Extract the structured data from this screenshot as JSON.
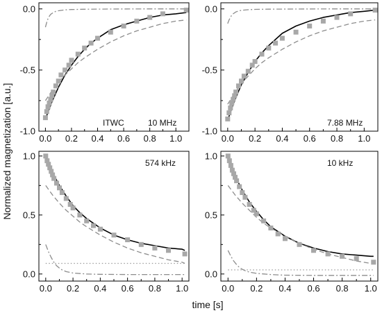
{
  "figure": {
    "ylabel": "Normalized magnetization [a.u.]",
    "xlabel": "time [s]"
  },
  "style": {
    "marker_color": "#a8a8a8",
    "fit_color": "#000000",
    "component_color": "#8c8c8c",
    "offset_color": "#9a9a9a"
  },
  "chart_data": [
    {
      "type": "scatter",
      "annotations": [
        "ITWC",
        "10 MHz"
      ],
      "xlim": [
        -0.05,
        1.1
      ],
      "ylim": [
        -1.0,
        0.05
      ],
      "xticks": [
        "0.0",
        "0.2",
        "0.4",
        "0.6",
        "0.8",
        "1.0"
      ],
      "yticks": [
        "-1.0",
        "-0.5",
        "0.0"
      ],
      "series": [
        {
          "role": "data",
          "marker": "square",
          "x": [
            0.0,
            0.01,
            0.02,
            0.03,
            0.04,
            0.05,
            0.06,
            0.08,
            0.1,
            0.12,
            0.15,
            0.18,
            0.2,
            0.25,
            0.3,
            0.35,
            0.4,
            0.5,
            0.6,
            0.7,
            0.8,
            0.9,
            1.08
          ],
          "y": [
            -0.89,
            -0.84,
            -0.8,
            -0.77,
            -0.74,
            -0.71,
            -0.68,
            -0.63,
            -0.59,
            -0.54,
            -0.5,
            -0.46,
            -0.42,
            -0.37,
            -0.32,
            -0.28,
            -0.24,
            -0.19,
            -0.14,
            -0.1,
            -0.07,
            -0.04,
            -0.01
          ]
        },
        {
          "role": "fit",
          "line": "solid",
          "x": [
            0.0,
            0.05,
            0.1,
            0.15,
            0.2,
            0.25,
            0.3,
            0.35,
            0.4,
            0.5,
            0.6,
            0.7,
            0.8,
            0.9,
            1.0,
            1.08
          ],
          "y": [
            -0.9,
            -0.76,
            -0.64,
            -0.54,
            -0.46,
            -0.39,
            -0.33,
            -0.28,
            -0.24,
            -0.17,
            -0.13,
            -0.1,
            -0.07,
            -0.05,
            -0.04,
            -0.03
          ]
        },
        {
          "role": "component",
          "line": "dashed",
          "x": [
            0.0,
            0.05,
            0.1,
            0.15,
            0.2,
            0.25,
            0.3,
            0.4,
            0.5,
            0.6,
            0.7,
            0.8,
            0.9,
            1.0,
            1.08
          ],
          "y": [
            -0.75,
            -0.67,
            -0.6,
            -0.54,
            -0.49,
            -0.44,
            -0.4,
            -0.33,
            -0.27,
            -0.22,
            -0.18,
            -0.15,
            -0.12,
            -0.1,
            -0.09
          ]
        },
        {
          "role": "component",
          "line": "dashdot",
          "x": [
            0.0,
            0.01,
            0.02,
            0.03,
            0.04,
            0.06,
            0.08,
            0.1,
            0.15,
            0.2,
            0.3,
            0.5,
            0.8,
            1.08
          ],
          "y": [
            -0.15,
            -0.11,
            -0.08,
            -0.06,
            -0.045,
            -0.03,
            -0.02,
            -0.015,
            -0.008,
            -0.005,
            -0.003,
            -0.001,
            0.0,
            0.0
          ]
        }
      ]
    },
    {
      "type": "scatter",
      "annotations": [
        "7.88 MHz"
      ],
      "xlim": [
        -0.05,
        1.1
      ],
      "ylim": [
        -1.0,
        0.05
      ],
      "xticks": [
        "0.0",
        "0.2",
        "0.4",
        "0.6",
        "0.8",
        "1.0"
      ],
      "yticks": [
        "-1.0",
        "-0.5",
        "0.0"
      ],
      "series": [
        {
          "role": "data",
          "marker": "square",
          "x": [
            0.0,
            0.01,
            0.02,
            0.03,
            0.04,
            0.05,
            0.06,
            0.08,
            0.1,
            0.12,
            0.15,
            0.18,
            0.2,
            0.25,
            0.3,
            0.35,
            0.4,
            0.5,
            0.6,
            0.7,
            0.8,
            0.9,
            1.08
          ],
          "y": [
            -0.9,
            -0.85,
            -0.81,
            -0.77,
            -0.74,
            -0.71,
            -0.68,
            -0.63,
            -0.59,
            -0.55,
            -0.51,
            -0.46,
            -0.43,
            -0.37,
            -0.32,
            -0.28,
            -0.24,
            -0.19,
            -0.14,
            -0.1,
            -0.07,
            -0.04,
            -0.01
          ]
        },
        {
          "role": "fit",
          "line": "solid",
          "x": [
            0.0,
            0.05,
            0.1,
            0.15,
            0.2,
            0.25,
            0.3,
            0.35,
            0.4,
            0.5,
            0.6,
            0.7,
            0.8,
            0.9,
            1.0,
            1.08
          ],
          "y": [
            -0.91,
            -0.75,
            -0.62,
            -0.52,
            -0.43,
            -0.36,
            -0.3,
            -0.25,
            -0.2,
            -0.14,
            -0.1,
            -0.07,
            -0.05,
            -0.03,
            -0.02,
            -0.01
          ]
        },
        {
          "role": "component",
          "line": "dashed",
          "x": [
            0.0,
            0.05,
            0.1,
            0.15,
            0.2,
            0.25,
            0.3,
            0.4,
            0.5,
            0.6,
            0.7,
            0.8,
            0.9,
            1.0,
            1.08
          ],
          "y": [
            -0.78,
            -0.69,
            -0.61,
            -0.55,
            -0.49,
            -0.44,
            -0.4,
            -0.33,
            -0.27,
            -0.22,
            -0.18,
            -0.15,
            -0.12,
            -0.1,
            -0.09
          ]
        },
        {
          "role": "component",
          "line": "dashdot",
          "x": [
            0.0,
            0.01,
            0.02,
            0.03,
            0.04,
            0.06,
            0.08,
            0.1,
            0.15,
            0.2,
            0.3,
            0.5,
            0.8,
            1.08
          ],
          "y": [
            -0.12,
            -0.09,
            -0.07,
            -0.05,
            -0.04,
            -0.025,
            -0.017,
            -0.012,
            -0.007,
            -0.004,
            -0.002,
            -0.001,
            0.0,
            0.0
          ]
        }
      ]
    },
    {
      "type": "scatter",
      "annotations": [
        "574 kHz"
      ],
      "xlim": [
        -0.05,
        1.05
      ],
      "ylim": [
        -0.06,
        1.04
      ],
      "xticks": [
        "0.0",
        "0.2",
        "0.4",
        "0.6",
        "0.8",
        "1.0"
      ],
      "yticks": [
        "0.0",
        "0.5",
        "1.0"
      ],
      "series": [
        {
          "role": "data",
          "marker": "square",
          "x": [
            0.0,
            0.01,
            0.02,
            0.03,
            0.04,
            0.05,
            0.06,
            0.08,
            0.1,
            0.12,
            0.15,
            0.18,
            0.2,
            0.25,
            0.3,
            0.35,
            0.4,
            0.5,
            0.6,
            0.7,
            0.8,
            0.9,
            1.02
          ],
          "y": [
            1.0,
            0.96,
            0.93,
            0.9,
            0.87,
            0.84,
            0.81,
            0.77,
            0.73,
            0.69,
            0.64,
            0.59,
            0.56,
            0.5,
            0.45,
            0.41,
            0.38,
            0.33,
            0.29,
            0.25,
            0.22,
            0.2,
            0.17
          ]
        },
        {
          "role": "fit",
          "line": "solid",
          "x": [
            0.0,
            0.05,
            0.1,
            0.15,
            0.2,
            0.25,
            0.3,
            0.35,
            0.4,
            0.5,
            0.6,
            0.7,
            0.8,
            0.9,
            1.0,
            1.02
          ],
          "y": [
            1.0,
            0.86,
            0.75,
            0.66,
            0.58,
            0.52,
            0.47,
            0.43,
            0.39,
            0.33,
            0.29,
            0.26,
            0.24,
            0.22,
            0.21,
            0.2
          ]
        },
        {
          "role": "component",
          "line": "dashed",
          "x": [
            0.0,
            0.05,
            0.1,
            0.15,
            0.2,
            0.25,
            0.3,
            0.4,
            0.5,
            0.6,
            0.7,
            0.8,
            0.9,
            1.0,
            1.02
          ],
          "y": [
            0.75,
            0.67,
            0.6,
            0.54,
            0.49,
            0.44,
            0.4,
            0.33,
            0.27,
            0.22,
            0.18,
            0.15,
            0.12,
            0.1,
            0.09
          ]
        },
        {
          "role": "component",
          "line": "dashdot",
          "x": [
            0.0,
            0.02,
            0.04,
            0.06,
            0.08,
            0.1,
            0.12,
            0.15,
            0.2,
            0.3,
            0.4,
            0.6,
            0.8,
            1.02
          ],
          "y": [
            0.25,
            0.19,
            0.14,
            0.1,
            0.07,
            0.05,
            0.035,
            0.02,
            0.008,
            0.0,
            -0.003,
            -0.005,
            -0.005,
            -0.005
          ]
        },
        {
          "role": "offset",
          "line": "dotted",
          "x": [
            0.0,
            1.02
          ],
          "y": [
            0.09,
            0.09
          ]
        }
      ]
    },
    {
      "type": "scatter",
      "annotations": [
        "10 kHz"
      ],
      "xlim": [
        -0.05,
        1.05
      ],
      "ylim": [
        -0.06,
        1.04
      ],
      "xticks": [
        "0.0",
        "0.2",
        "0.4",
        "0.6",
        "0.8",
        "1.0"
      ],
      "yticks": [
        "0.0",
        "0.5",
        "1.0"
      ],
      "series": [
        {
          "role": "data",
          "marker": "square",
          "x": [
            0.0,
            0.01,
            0.02,
            0.03,
            0.04,
            0.05,
            0.06,
            0.08,
            0.1,
            0.12,
            0.15,
            0.18,
            0.2,
            0.25,
            0.3,
            0.35,
            0.4,
            0.5,
            0.6,
            0.7,
            0.8,
            0.9,
            1.02
          ],
          "y": [
            1.0,
            0.96,
            0.92,
            0.88,
            0.85,
            0.82,
            0.79,
            0.74,
            0.69,
            0.65,
            0.59,
            0.54,
            0.51,
            0.45,
            0.39,
            0.34,
            0.3,
            0.25,
            0.2,
            0.17,
            0.15,
            0.13,
            0.1
          ]
        },
        {
          "role": "fit",
          "line": "solid",
          "x": [
            0.0,
            0.05,
            0.1,
            0.15,
            0.2,
            0.25,
            0.3,
            0.35,
            0.4,
            0.5,
            0.6,
            0.7,
            0.8,
            0.9,
            1.0,
            1.02
          ],
          "y": [
            0.98,
            0.83,
            0.71,
            0.61,
            0.53,
            0.46,
            0.4,
            0.36,
            0.32,
            0.26,
            0.22,
            0.19,
            0.17,
            0.16,
            0.15,
            0.15
          ]
        },
        {
          "role": "component",
          "line": "dashed",
          "x": [
            0.0,
            0.05,
            0.1,
            0.15,
            0.2,
            0.25,
            0.3,
            0.4,
            0.5,
            0.6,
            0.7,
            0.8,
            0.9,
            1.0,
            1.02
          ],
          "y": [
            0.75,
            0.67,
            0.6,
            0.54,
            0.48,
            0.43,
            0.39,
            0.32,
            0.26,
            0.21,
            0.17,
            0.14,
            0.11,
            0.09,
            0.09
          ]
        },
        {
          "role": "component",
          "line": "dashdot",
          "x": [
            0.0,
            0.02,
            0.04,
            0.06,
            0.08,
            0.1,
            0.12,
            0.15,
            0.2,
            0.3,
            0.4,
            0.6,
            0.8,
            1.02
          ],
          "y": [
            0.2,
            0.15,
            0.11,
            0.08,
            0.055,
            0.04,
            0.028,
            0.016,
            0.005,
            -0.005,
            -0.01,
            -0.012,
            -0.012,
            -0.012
          ]
        },
        {
          "role": "offset",
          "line": "dotted",
          "x": [
            0.0,
            1.02
          ],
          "y": [
            0.035,
            0.035
          ]
        }
      ]
    }
  ]
}
